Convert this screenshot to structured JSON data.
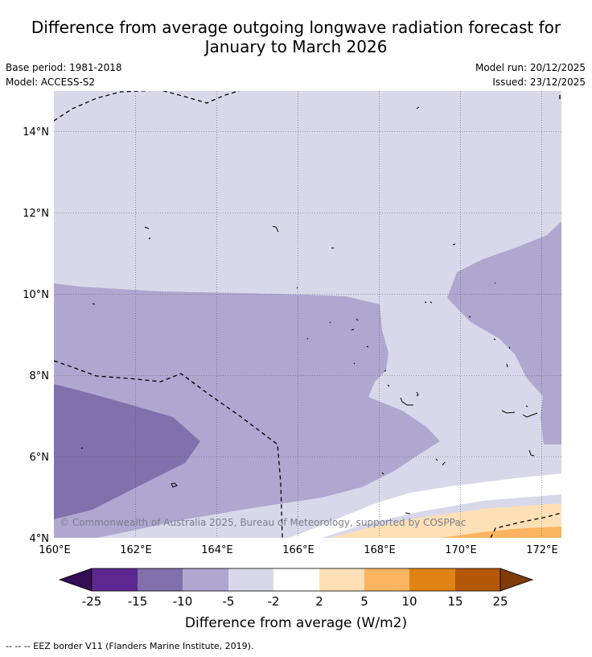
{
  "title_line1": "Difference from average outgoing longwave radiation forecast for",
  "title_line2": "January to March 2026",
  "base_period": "Base period: 1981-2018",
  "model": "Model: ACCESS-S2",
  "model_run": "Model run: 20/12/2025",
  "issued": "Issued: 23/12/2025",
  "lat_labels": [
    "14°N",
    "12°N",
    "10°N",
    "8°N",
    "6°N",
    "4°N"
  ],
  "lon_labels": [
    "160°E",
    "162°E",
    "164°E",
    "166°E",
    "168°E",
    "170°E",
    "172°E"
  ],
  "copyright": "© Commonwealth of Australia 2025, Bureau of Meteorology, supported by COSPPac",
  "colorbar": {
    "ticks": [
      "-25",
      "-15",
      "-10",
      "-5",
      "-2",
      "2",
      "5",
      "10",
      "15",
      "25"
    ],
    "colors": [
      "#340d54",
      "#5d2791",
      "#8070ac",
      "#afa7d0",
      "#d8d8ea",
      "#ffffff",
      "#fee0b6",
      "#fbb45f",
      "#e08214",
      "#b35806",
      "#7f3b08"
    ],
    "label": "Difference from average (W/m2)"
  },
  "footnote": "--  --  -- EEZ border V11 (Flanders Marine Institute, 2019)."
}
